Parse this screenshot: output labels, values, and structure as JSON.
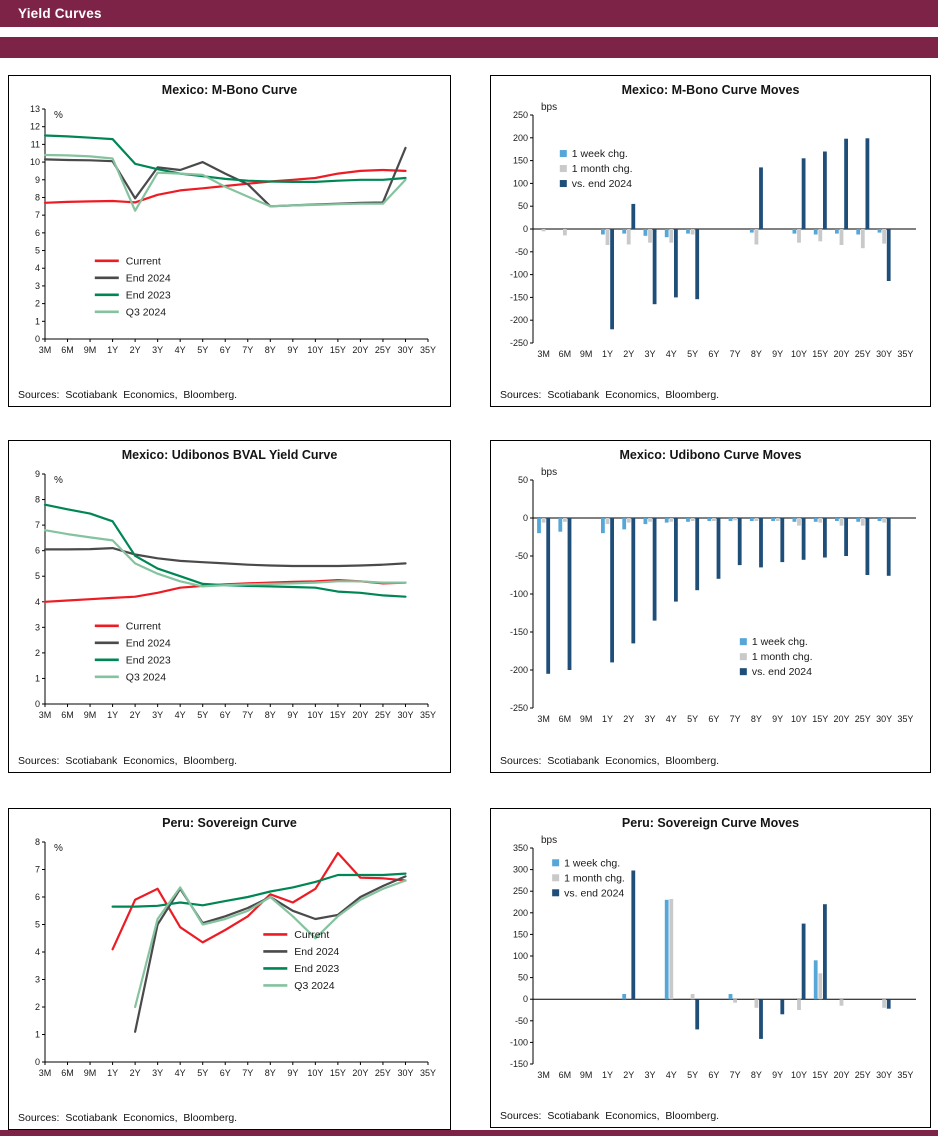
{
  "header": {
    "title": "Yield Curves"
  },
  "palette": {
    "header_bar": "#7d2348",
    "band": "#7d2348",
    "current": "#ed1c24",
    "end2024": "#4a4a4c",
    "end2023": "#008655",
    "q32024": "#85c39f",
    "week_chg": "#56a7d8",
    "month_chg": "#c9c9c9",
    "vs_end_2024": "#1f4e79"
  },
  "chart_data": [
    {
      "type": "line",
      "title": "Mexico: M-Bono Curve",
      "sources": "Sources: Scotiabank Economics, Bloomberg.",
      "unit": "%",
      "categories": [
        "3M",
        "6M",
        "9M",
        "1Y",
        "2Y",
        "3Y",
        "4Y",
        "5Y",
        "6Y",
        "7Y",
        "8Y",
        "9Y",
        "10Y",
        "15Y",
        "20Y",
        "25Y",
        "30Y",
        "35Y"
      ],
      "ylim": [
        0,
        13
      ],
      "ytick_step": 1,
      "legend_pos": {
        "x": 0.13,
        "y": 0.66
      },
      "series": [
        {
          "name": "Current",
          "color": "#ed1c24",
          "values": [
            7.7,
            7.75,
            7.78,
            7.8,
            7.72,
            8.15,
            8.4,
            8.52,
            8.65,
            8.78,
            8.9,
            9.0,
            9.1,
            9.35,
            9.5,
            9.55,
            9.5,
            null
          ]
        },
        {
          "name": "End 2024",
          "color": "#4a4a4c",
          "values": [
            10.15,
            10.12,
            10.1,
            10.05,
            7.95,
            9.7,
            9.55,
            10.0,
            9.35,
            8.75,
            7.5,
            7.55,
            7.6,
            7.65,
            7.7,
            7.72,
            10.8,
            null
          ]
        },
        {
          "name": "End 2023",
          "color": "#008655",
          "values": [
            11.5,
            11.45,
            11.38,
            11.3,
            9.9,
            9.6,
            9.35,
            9.2,
            9.05,
            8.95,
            8.9,
            8.88,
            8.88,
            8.95,
            9.0,
            9.0,
            9.1,
            null
          ]
        },
        {
          "name": "Q3 2024",
          "color": "#85c39f",
          "values": [
            10.4,
            10.38,
            10.32,
            10.2,
            7.25,
            9.4,
            9.35,
            9.28,
            8.6,
            8.05,
            7.5,
            7.55,
            7.58,
            7.62,
            7.65,
            7.65,
            9.0,
            null
          ]
        }
      ]
    },
    {
      "type": "bar",
      "title": "Mexico: M-Bono Curve Moves",
      "sources": "Sources: Scotiabank Economics, Bloomberg.",
      "unit": "bps",
      "categories": [
        "3M",
        "6M",
        "9M",
        "1Y",
        "2Y",
        "3Y",
        "4Y",
        "5Y",
        "6Y",
        "7Y",
        "8Y",
        "9Y",
        "10Y",
        "15Y",
        "20Y",
        "25Y",
        "30Y",
        "35Y"
      ],
      "ylim": [
        -250,
        250
      ],
      "ytick_step": 50,
      "legend_pos": {
        "x": 0.07,
        "y": 0.18
      },
      "series": [
        {
          "name": "1 week chg.",
          "color": "#56a7d8",
          "values": [
            0,
            0,
            0,
            -12,
            -10,
            -15,
            -18,
            -10,
            0,
            0,
            -8,
            0,
            -10,
            -12,
            -10,
            -12,
            -8,
            0
          ]
        },
        {
          "name": "1 month chg.",
          "color": "#c9c9c9",
          "values": [
            -5,
            -14,
            0,
            -35,
            -34,
            -30,
            -30,
            -12,
            0,
            0,
            -34,
            0,
            -30,
            -27,
            -35,
            -42,
            -32,
            0
          ]
        },
        {
          "name": "vs. end 2024",
          "color": "#1f4e79",
          "values": [
            0,
            0,
            0,
            -220,
            55,
            -165,
            -150,
            -154,
            0,
            0,
            135,
            0,
            155,
            170,
            198,
            199,
            -114,
            0
          ]
        }
      ]
    },
    {
      "type": "line",
      "title": "Mexico: Udibonos BVAL Yield Curve",
      "sources": "Sources: Scotiabank Economics, Bloomberg.",
      "unit": "%",
      "categories": [
        "3M",
        "6M",
        "9M",
        "1Y",
        "2Y",
        "3Y",
        "4Y",
        "5Y",
        "6Y",
        "7Y",
        "8Y",
        "9Y",
        "10Y",
        "15Y",
        "20Y",
        "25Y",
        "30Y",
        "35Y"
      ],
      "ylim": [
        0,
        9
      ],
      "ytick_step": 1,
      "legend_pos": {
        "x": 0.13,
        "y": 0.66
      },
      "series": [
        {
          "name": "Current",
          "color": "#ed1c24",
          "values": [
            4.0,
            4.05,
            4.1,
            4.15,
            4.2,
            4.35,
            4.55,
            4.62,
            4.68,
            4.72,
            4.75,
            4.78,
            4.8,
            4.85,
            4.8,
            4.72,
            4.75,
            null
          ]
        },
        {
          "name": "End 2024",
          "color": "#4a4a4c",
          "values": [
            6.05,
            6.05,
            6.06,
            6.1,
            5.85,
            5.7,
            5.6,
            5.55,
            5.5,
            5.45,
            5.42,
            5.4,
            5.4,
            5.4,
            5.42,
            5.45,
            5.5,
            null
          ]
        },
        {
          "name": "End 2023",
          "color": "#008655",
          "values": [
            7.8,
            7.62,
            7.45,
            7.15,
            5.8,
            5.3,
            5.0,
            4.7,
            4.65,
            4.62,
            4.6,
            4.58,
            4.55,
            4.4,
            4.35,
            4.25,
            4.2,
            null
          ]
        },
        {
          "name": "Q3 2024",
          "color": "#85c39f",
          "values": [
            6.8,
            6.65,
            6.52,
            6.4,
            5.5,
            5.1,
            4.8,
            4.6,
            4.65,
            4.68,
            4.7,
            4.72,
            4.75,
            4.8,
            4.8,
            4.75,
            4.75,
            null
          ]
        }
      ]
    },
    {
      "type": "bar",
      "title": "Mexico: Udibono Curve Moves",
      "sources": "Sources: Scotiabank Economics, Bloomberg.",
      "unit": "bps",
      "categories": [
        "3M",
        "6M",
        "9M",
        "1Y",
        "2Y",
        "3Y",
        "4Y",
        "5Y",
        "6Y",
        "7Y",
        "8Y",
        "9Y",
        "10Y",
        "15Y",
        "20Y",
        "25Y",
        "30Y",
        "35Y"
      ],
      "ylim": [
        -250,
        50
      ],
      "ytick_step": 50,
      "legend_pos": {
        "x": 0.54,
        "y": 0.72
      },
      "series": [
        {
          "name": "1 week chg.",
          "color": "#56a7d8",
          "values": [
            -20,
            -18,
            0,
            -20,
            -15,
            -8,
            -6,
            -5,
            -4,
            -4,
            -4,
            -4,
            -5,
            -5,
            -4,
            -5,
            -4,
            0
          ]
        },
        {
          "name": "1 month chg.",
          "color": "#c9c9c9",
          "values": [
            -6,
            -5,
            0,
            -8,
            -6,
            -5,
            -5,
            -4,
            -4,
            -3,
            -4,
            -4,
            -10,
            -6,
            -10,
            -10,
            -6,
            0
          ]
        },
        {
          "name": "vs. end 2024",
          "color": "#1f4e79",
          "values": [
            -205,
            -200,
            0,
            -190,
            -165,
            -135,
            -110,
            -95,
            -80,
            -62,
            -65,
            -58,
            -55,
            -52,
            -50,
            -75,
            -76,
            0
          ]
        }
      ]
    },
    {
      "type": "line",
      "title": "Peru: Sovereign Curve",
      "sources": "Sources: Scotiabank Economics, Bloomberg.",
      "unit": "%",
      "categories": [
        "3M",
        "6M",
        "9M",
        "1Y",
        "2Y",
        "3Y",
        "4Y",
        "5Y",
        "6Y",
        "7Y",
        "8Y",
        "9Y",
        "10Y",
        "15Y",
        "20Y",
        "25Y",
        "30Y",
        "35Y"
      ],
      "ylim": [
        0,
        8
      ],
      "ytick_step": 1,
      "legend_pos": {
        "x": 0.57,
        "y": 0.42
      },
      "series": [
        {
          "name": "Current",
          "color": "#ed1c24",
          "values": [
            null,
            null,
            null,
            4.1,
            5.9,
            6.3,
            4.9,
            4.35,
            4.8,
            5.3,
            6.1,
            5.8,
            6.3,
            7.6,
            6.7,
            6.68,
            6.6,
            null
          ]
        },
        {
          "name": "End 2024",
          "color": "#4a4a4c",
          "values": [
            null,
            null,
            null,
            null,
            1.1,
            5.0,
            6.3,
            5.05,
            5.3,
            5.6,
            6.0,
            5.5,
            5.2,
            5.35,
            6.0,
            6.4,
            6.75,
            null
          ]
        },
        {
          "name": "End 2023",
          "color": "#008655",
          "values": [
            null,
            null,
            null,
            5.65,
            5.65,
            5.68,
            5.8,
            5.7,
            5.85,
            6.0,
            6.2,
            6.35,
            6.55,
            6.8,
            6.8,
            6.8,
            6.85,
            null
          ]
        },
        {
          "name": "Q3 2024",
          "color": "#85c39f",
          "values": [
            null,
            null,
            null,
            null,
            2.0,
            5.2,
            6.35,
            5.0,
            5.2,
            5.5,
            6.0,
            5.3,
            4.5,
            5.3,
            5.9,
            6.3,
            6.6,
            null
          ]
        }
      ]
    },
    {
      "type": "bar",
      "title": "Peru: Sovereign Curve Moves",
      "sources": "Sources: Scotiabank Economics, Bloomberg.",
      "unit": "bps",
      "categories": [
        "3M",
        "6M",
        "9M",
        "1Y",
        "2Y",
        "3Y",
        "4Y",
        "5Y",
        "6Y",
        "7Y",
        "8Y",
        "9Y",
        "10Y",
        "15Y",
        "20Y",
        "25Y",
        "30Y",
        "35Y"
      ],
      "ylim": [
        -150,
        350
      ],
      "ytick_step": 50,
      "legend_pos": {
        "x": 0.05,
        "y": 0.08
      },
      "series": [
        {
          "name": "1 week chg.",
          "color": "#56a7d8",
          "values": [
            0,
            0,
            0,
            0,
            12,
            0,
            230,
            0,
            0,
            12,
            0,
            0,
            0,
            90,
            0,
            0,
            0,
            0
          ]
        },
        {
          "name": "1 month chg.",
          "color": "#c9c9c9",
          "values": [
            0,
            0,
            0,
            0,
            0,
            0,
            232,
            12,
            0,
            -8,
            -20,
            0,
            -25,
            60,
            -15,
            0,
            -20,
            0
          ]
        },
        {
          "name": "vs. end 2024",
          "color": "#1f4e79",
          "values": [
            0,
            0,
            0,
            0,
            298,
            0,
            0,
            -70,
            0,
            0,
            -92,
            -35,
            175,
            220,
            0,
            0,
            -22,
            0
          ]
        }
      ]
    }
  ]
}
